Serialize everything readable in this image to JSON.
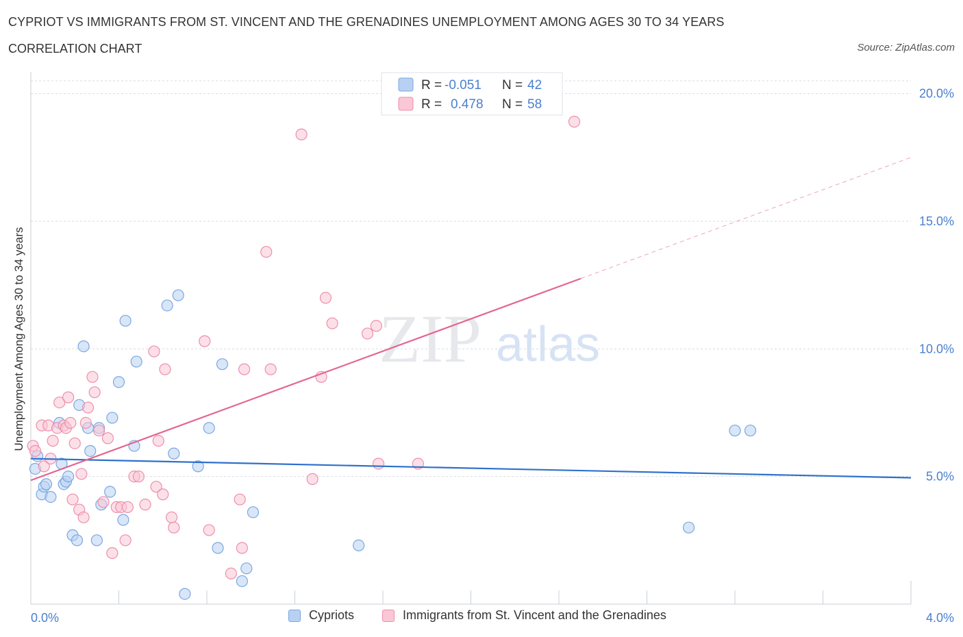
{
  "header": {
    "title": "CYPRIOT VS IMMIGRANTS FROM ST. VINCENT AND THE GRENADINES UNEMPLOYMENT AMONG AGES 30 TO 34 YEARS",
    "subtitle": "CORRELATION CHART",
    "source": "Source: ZipAtlas.com"
  },
  "watermark": {
    "zip": "ZIP",
    "atlas": "atlas"
  },
  "colors": {
    "blue_fill": "#b8d1f3",
    "blue_stroke": "#7aa7e0",
    "blue_line": "#2e70cc",
    "pink_fill": "#f9c7d6",
    "pink_stroke": "#ee8eab",
    "pink_line": "#e36590",
    "axis_text": "#4a7fcf",
    "grid": "#d6dbe3"
  },
  "legend": {
    "rows": [
      {
        "r_label": "R =",
        "r_value": "-0.051",
        "n_label": "N =",
        "n_value": "42"
      },
      {
        "r_label": "R =",
        "r_value": "0.478",
        "n_label": "N =",
        "n_value": "58"
      }
    ]
  },
  "chart_data": {
    "type": "scatter",
    "title": "CYPRIOT VS IMMIGRANTS FROM ST. VINCENT AND THE GRENADINES UNEMPLOYMENT AMONG AGES 30 TO 34 YEARS",
    "xlabel": "",
    "ylabel": "Unemployment Among Ages 30 to 34 years",
    "xlim": [
      0,
      4.0
    ],
    "ylim": [
      0,
      20.5
    ],
    "x_tick_labels": [
      "0.0%",
      "4.0%"
    ],
    "y_ticks": [
      5,
      10,
      15,
      20
    ],
    "y_tick_labels": [
      "5.0%",
      "10.0%",
      "15.0%",
      "20.0%"
    ],
    "grid": true,
    "legend_position": "top-center",
    "series": [
      {
        "name": "Cypriots",
        "color": "#7aa7e0",
        "r": -0.051,
        "n": 42,
        "trend": {
          "x0": 0.0,
          "y0": 5.7,
          "x1": 4.0,
          "y1": 4.95,
          "x_solid_end": 4.0
        },
        "points": [
          [
            0.02,
            5.3
          ],
          [
            0.03,
            5.8
          ],
          [
            0.05,
            4.3
          ],
          [
            0.06,
            4.6
          ],
          [
            0.07,
            4.7
          ],
          [
            0.09,
            4.2
          ],
          [
            0.13,
            7.1
          ],
          [
            0.14,
            5.5
          ],
          [
            0.15,
            4.7
          ],
          [
            0.16,
            4.8
          ],
          [
            0.17,
            5.0
          ],
          [
            0.19,
            2.7
          ],
          [
            0.21,
            2.5
          ],
          [
            0.22,
            7.8
          ],
          [
            0.24,
            10.1
          ],
          [
            0.26,
            6.9
          ],
          [
            0.27,
            6.0
          ],
          [
            0.3,
            2.5
          ],
          [
            0.31,
            6.9
          ],
          [
            0.32,
            3.9
          ],
          [
            0.36,
            4.4
          ],
          [
            0.37,
            7.3
          ],
          [
            0.4,
            8.7
          ],
          [
            0.42,
            3.3
          ],
          [
            0.43,
            11.1
          ],
          [
            0.47,
            6.2
          ],
          [
            0.48,
            9.5
          ],
          [
            0.62,
            11.7
          ],
          [
            0.65,
            5.9
          ],
          [
            0.67,
            12.1
          ],
          [
            0.7,
            0.4
          ],
          [
            0.76,
            5.4
          ],
          [
            0.81,
            6.9
          ],
          [
            0.85,
            2.2
          ],
          [
            0.87,
            9.4
          ],
          [
            0.96,
            0.9
          ],
          [
            0.98,
            1.4
          ],
          [
            1.01,
            3.6
          ],
          [
            1.49,
            2.3
          ],
          [
            2.99,
            3.0
          ],
          [
            3.2,
            6.8
          ],
          [
            3.27,
            6.8
          ]
        ]
      },
      {
        "name": "Immigrants from St. Vincent and the Grenadines",
        "color": "#ee8eab",
        "r": 0.478,
        "n": 58,
        "trend": {
          "x0": 0.0,
          "y0": 4.85,
          "x1": 4.0,
          "y1": 17.5,
          "x_solid_end": 2.5
        },
        "points": [
          [
            0.01,
            6.2
          ],
          [
            0.02,
            6.0
          ],
          [
            0.05,
            7.0
          ],
          [
            0.06,
            5.4
          ],
          [
            0.08,
            7.0
          ],
          [
            0.09,
            5.7
          ],
          [
            0.1,
            6.4
          ],
          [
            0.12,
            6.9
          ],
          [
            0.13,
            7.9
          ],
          [
            0.15,
            7.0
          ],
          [
            0.16,
            6.9
          ],
          [
            0.17,
            8.1
          ],
          [
            0.18,
            7.1
          ],
          [
            0.19,
            4.1
          ],
          [
            0.2,
            6.3
          ],
          [
            0.22,
            3.7
          ],
          [
            0.23,
            5.1
          ],
          [
            0.24,
            3.4
          ],
          [
            0.25,
            7.1
          ],
          [
            0.26,
            7.7
          ],
          [
            0.28,
            8.9
          ],
          [
            0.29,
            8.3
          ],
          [
            0.31,
            6.8
          ],
          [
            0.33,
            4.0
          ],
          [
            0.35,
            6.5
          ],
          [
            0.37,
            2.0
          ],
          [
            0.39,
            3.8
          ],
          [
            0.41,
            3.8
          ],
          [
            0.43,
            2.5
          ],
          [
            0.44,
            3.8
          ],
          [
            0.47,
            5.0
          ],
          [
            0.49,
            5.0
          ],
          [
            0.52,
            3.9
          ],
          [
            0.56,
            9.9
          ],
          [
            0.57,
            4.6
          ],
          [
            0.58,
            6.4
          ],
          [
            0.6,
            4.3
          ],
          [
            0.61,
            9.2
          ],
          [
            0.64,
            3.4
          ],
          [
            0.65,
            3.0
          ],
          [
            0.79,
            10.3
          ],
          [
            0.81,
            2.9
          ],
          [
            0.91,
            1.2
          ],
          [
            0.95,
            4.1
          ],
          [
            0.96,
            2.2
          ],
          [
            0.97,
            9.2
          ],
          [
            1.07,
            13.8
          ],
          [
            1.09,
            9.2
          ],
          [
            1.23,
            18.4
          ],
          [
            1.28,
            4.9
          ],
          [
            1.32,
            8.9
          ],
          [
            1.34,
            12.0
          ],
          [
            1.37,
            11.0
          ],
          [
            1.53,
            10.6
          ],
          [
            1.57,
            10.9
          ],
          [
            1.58,
            5.5
          ],
          [
            1.76,
            5.5
          ],
          [
            2.47,
            18.9
          ]
        ]
      }
    ]
  }
}
